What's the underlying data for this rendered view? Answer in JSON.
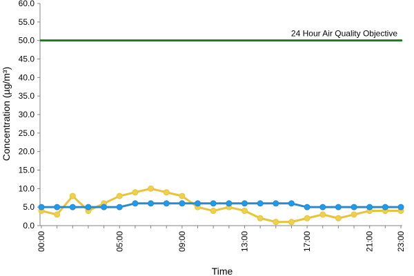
{
  "chart_data": {
    "type": "line",
    "xlabel": "Time",
    "ylabel": "Concentration (µg/m³)",
    "ylim": [
      0,
      60
    ],
    "y_ticks": [
      0.0,
      5.0,
      10.0,
      15.0,
      20.0,
      25.0,
      30.0,
      35.0,
      40.0,
      45.0,
      50.0,
      55.0,
      60.0
    ],
    "x": [
      "00:00",
      "01:00",
      "02:00",
      "03:00",
      "04:00",
      "05:00",
      "06:00",
      "07:00",
      "08:00",
      "09:00",
      "10:00",
      "11:00",
      "12:00",
      "13:00",
      "14:00",
      "15:00",
      "16:00",
      "17:00",
      "18:00",
      "19:00",
      "20:00",
      "21:00",
      "22:00",
      "23:00"
    ],
    "x_tick_labels": [
      "00:00",
      "05:00",
      "09:00",
      "13:00",
      "17:00",
      "21:00",
      "23:00"
    ],
    "series": [
      {
        "color": "#e8c33a",
        "marker_color": "#f0cf4a",
        "values": [
          4,
          3,
          8,
          4,
          6,
          8,
          9,
          10,
          9,
          8,
          5,
          4,
          5,
          4,
          2,
          1,
          1,
          2,
          3,
          2,
          3,
          4,
          4,
          4
        ]
      },
      {
        "color": "#2f86c8",
        "marker_color": "#1a9cf0",
        "values": [
          5,
          5,
          5,
          5,
          5,
          5,
          6,
          6,
          6,
          6,
          6,
          6,
          6,
          6,
          6,
          6,
          6,
          5,
          5,
          5,
          5,
          5,
          5,
          5
        ]
      }
    ],
    "reference_line": {
      "value": 50,
      "label": "24 Hour Air Quality Objective",
      "color": "#1f7a1f"
    },
    "grid": false,
    "legend": "none"
  }
}
